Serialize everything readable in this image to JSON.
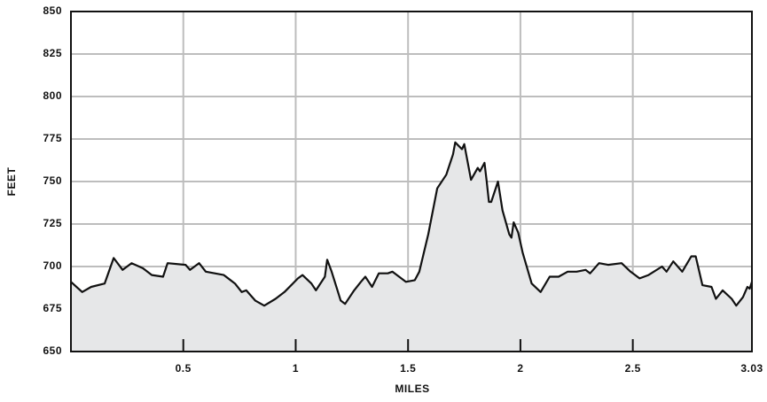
{
  "chart_data": {
    "type": "area",
    "xlabel": "MILES",
    "ylabel": "FEET",
    "x": [
      0.0,
      0.05,
      0.09,
      0.15,
      0.19,
      0.23,
      0.27,
      0.32,
      0.36,
      0.41,
      0.43,
      0.51,
      0.53,
      0.57,
      0.6,
      0.68,
      0.73,
      0.76,
      0.78,
      0.82,
      0.86,
      0.91,
      0.95,
      1.01,
      1.03,
      1.07,
      1.09,
      1.13,
      1.14,
      1.16,
      1.2,
      1.22,
      1.26,
      1.29,
      1.31,
      1.34,
      1.37,
      1.41,
      1.43,
      1.47,
      1.49,
      1.53,
      1.55,
      1.59,
      1.63,
      1.67,
      1.7,
      1.71,
      1.74,
      1.75,
      1.78,
      1.81,
      1.82,
      1.84,
      1.85,
      1.86,
      1.87,
      1.9,
      1.92,
      1.95,
      1.96,
      1.97,
      1.99,
      2.01,
      2.05,
      2.09,
      2.13,
      2.17,
      2.21,
      2.25,
      2.29,
      2.31,
      2.35,
      2.39,
      2.45,
      2.49,
      2.53,
      2.57,
      2.63,
      2.65,
      2.68,
      2.72,
      2.76,
      2.78,
      2.81,
      2.85,
      2.87,
      2.9,
      2.94,
      2.96,
      2.99,
      3.01,
      3.02,
      3.03
    ],
    "values": [
      691,
      685,
      688,
      690,
      705,
      698,
      702,
      699,
      695,
      694,
      702,
      701,
      698,
      702,
      697,
      695,
      690,
      685,
      686,
      680,
      677,
      681,
      685,
      693,
      695,
      690,
      686,
      694,
      704,
      697,
      680,
      678,
      686,
      691,
      694,
      688,
      696,
      696,
      697,
      693,
      691,
      692,
      697,
      719,
      746,
      754,
      766,
      773,
      769,
      772,
      751,
      758,
      756,
      761,
      750,
      738,
      738,
      750,
      733,
      719,
      717,
      726,
      720,
      708,
      690,
      685,
      694,
      694,
      697,
      697,
      698,
      696,
      702,
      701,
      702,
      697,
      693,
      695,
      700,
      697,
      703,
      697,
      706,
      706,
      689,
      688,
      681,
      686,
      681,
      677,
      682,
      688,
      687,
      691
    ],
    "color": "#111111",
    "fill": "#e6e7e8",
    "xlim": [
      0,
      3.03
    ],
    "xticks": [
      0.5,
      1,
      1.5,
      2,
      2.5,
      3.03
    ],
    "ylim": [
      650,
      850
    ],
    "yticks": [
      650,
      675,
      700,
      725,
      750,
      775,
      800,
      825,
      850
    ],
    "grid": true
  }
}
